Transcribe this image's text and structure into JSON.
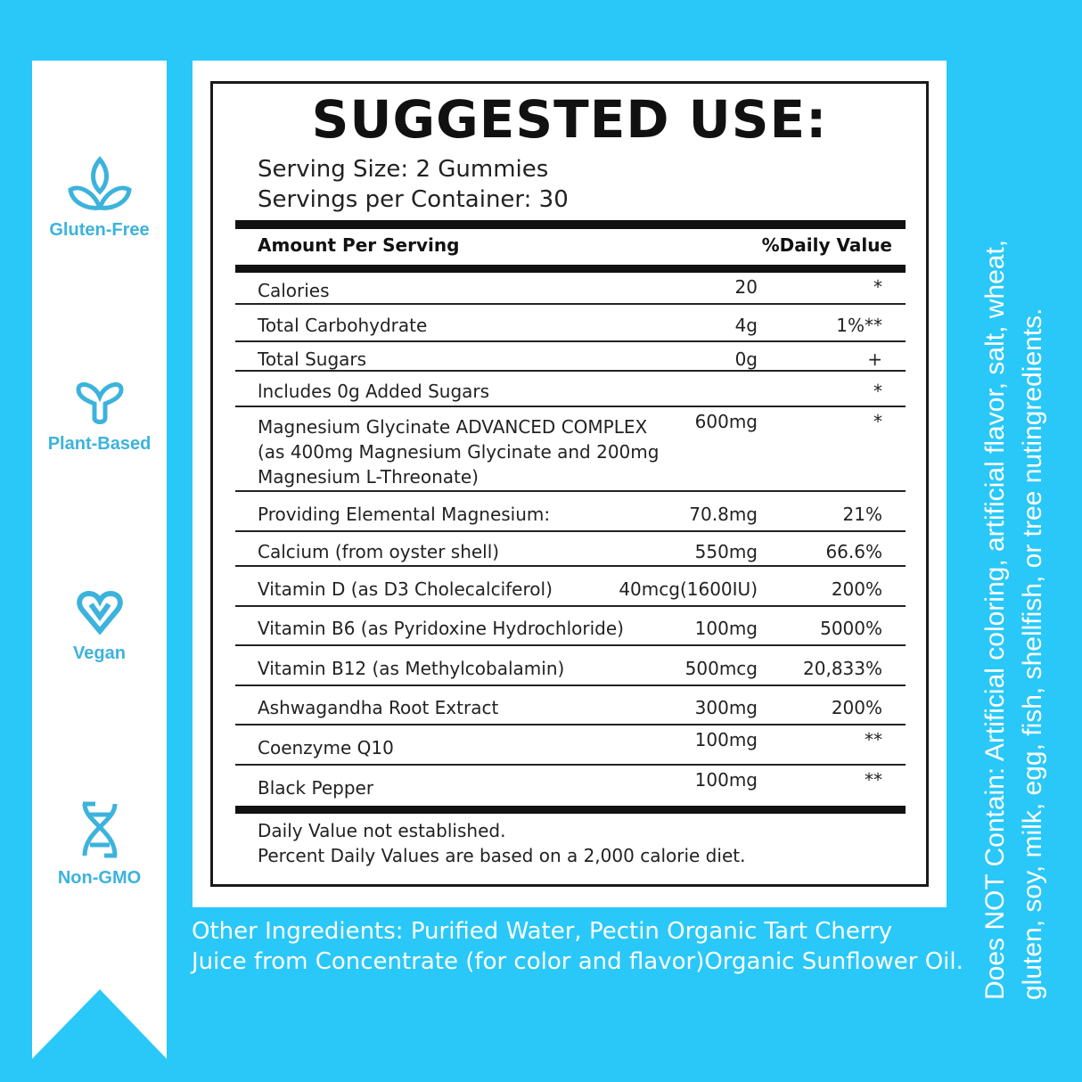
{
  "colors": {
    "background": "#29c8f8",
    "icon": "#3cb3dc",
    "text": "#222222"
  },
  "badges": [
    {
      "icon": "leaf-lotus-icon",
      "label": "Gluten-Free"
    },
    {
      "icon": "sprout-icon",
      "label": "Plant-Based"
    },
    {
      "icon": "heart-v-icon",
      "label": "Vegan"
    },
    {
      "icon": "dna-icon",
      "label": "Non-GMO"
    }
  ],
  "label": {
    "title": "SUGGESTED USE:",
    "serving_size": "Serving Size: 2 Gummies",
    "servings_per_container": "Servings per Container: 30",
    "header_amount": "Amount Per Serving",
    "header_dv": "%Daily Value",
    "rows": [
      {
        "name": "Calories",
        "amount": "20",
        "dv": "*"
      },
      {
        "name": "Total Carbohydrate",
        "amount": "4g",
        "dv": "1%**"
      },
      {
        "name": "Total Sugars",
        "amount": "0g",
        "dv": "+"
      },
      {
        "name": "lncludes 0g Added Sugars",
        "amount": "",
        "dv": "*"
      },
      {
        "name": "Magnesium Glycinate ADVANCED COMPLEX",
        "name2": "(as 400mg Magnesium Glycinate and 200mg",
        "name3": "Magnesium L-Threonate)",
        "amount": "600mg",
        "dv": "*"
      },
      {
        "name": "Providing Elemental Magnesium:",
        "amount": "70.8mg",
        "dv": "21%"
      },
      {
        "name": "Calcium (from oyster shell)",
        "amount": "550mg",
        "dv": "66.6%"
      },
      {
        "name": "Vitamin D (as D3 Cholecalciferol)",
        "amount": "40mcg(1600IU)",
        "dv": "200%"
      },
      {
        "name": "Vitamin B6 (as Pyridoxine Hydrochloride)",
        "amount": "100mg",
        "dv": "5000%"
      },
      {
        "name": "Vitamin B12 (as Methylcobalamin)",
        "amount": "500mcg",
        "dv": "20,833%"
      },
      {
        "name": "Ashwagandha Root Extract",
        "amount": "300mg",
        "dv": "200%"
      },
      {
        "name": "Coenzyme Q10",
        "amount": "100mg",
        "dv": "**"
      },
      {
        "name": "Black Pepper",
        "amount": "100mg",
        "dv": "**"
      }
    ],
    "footnote1": "Daily Value not established.",
    "footnote2": "Percent Daily Values are based on a 2,000 calorie diet."
  },
  "other_ingredients": {
    "line1": "Other Ingredients: Purified Water, Pectin Organic Tart Cherry",
    "line2": "Juice from Concentrate (for color and flavor)Organic Sunflower Oil."
  },
  "does_not_contain": {
    "line1": "Does NOT Contain: Artificial coloring, artificial flavor, salt, wheat,",
    "line2": "gluten, soy, milk, egg, fish, shellfish, or tree nutingredients."
  }
}
